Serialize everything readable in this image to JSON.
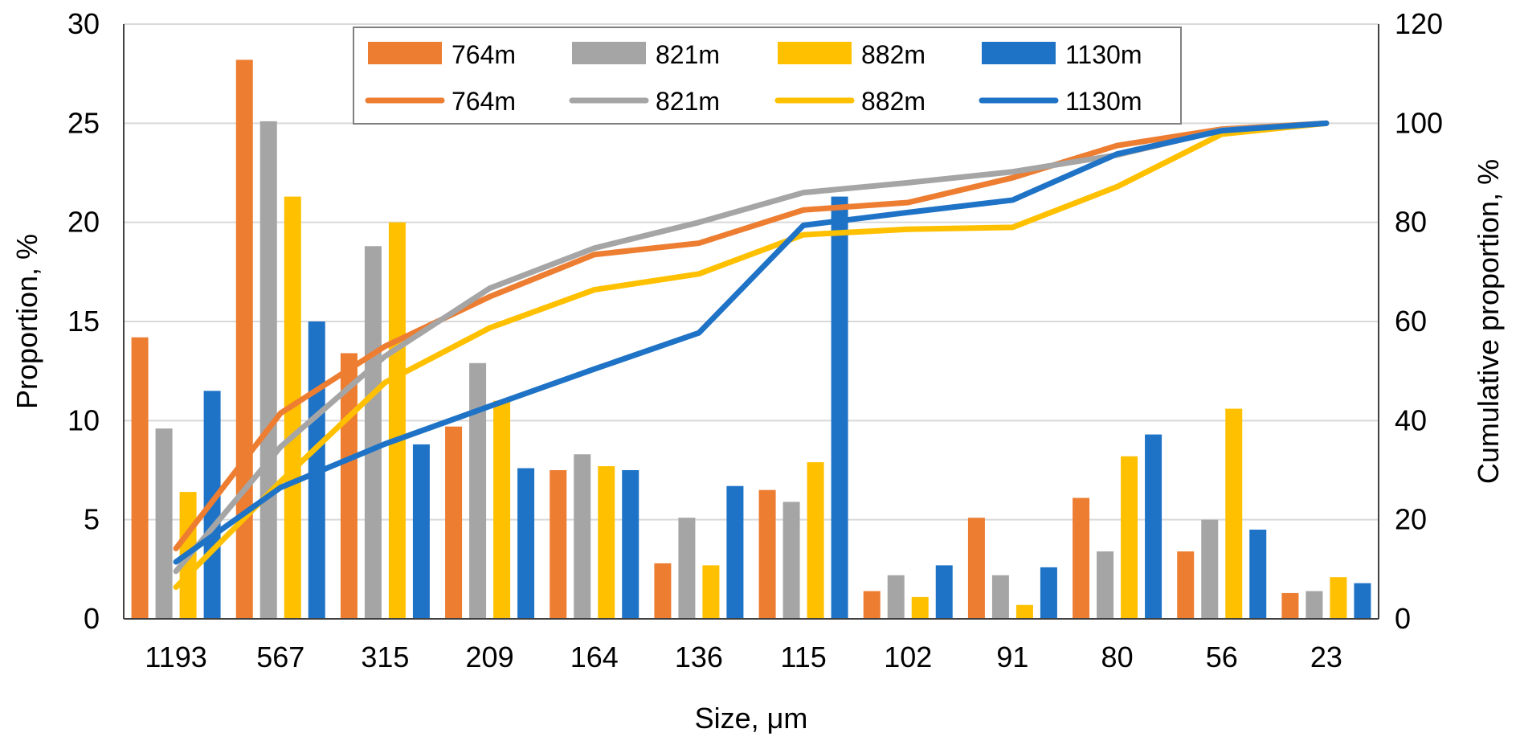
{
  "chart_data": {
    "type": "bar+line",
    "title": "",
    "xlabel": "Size, μm",
    "ylabel": "Proportion, %",
    "y2label": "Cumulative proportion, %",
    "ylim": [
      0,
      30
    ],
    "y2lim": [
      0,
      120
    ],
    "yticks": [
      "0",
      "5",
      "10",
      "15",
      "20",
      "25",
      "30"
    ],
    "y2ticks": [
      "0",
      "20",
      "40",
      "60",
      "80",
      "100",
      "120"
    ],
    "grid": true,
    "legend_position": "top",
    "categories": [
      "1193",
      "567",
      "315",
      "209",
      "164",
      "136",
      "115",
      "102",
      "91",
      "80",
      "56",
      "23"
    ],
    "bar_series": [
      {
        "name": "764m",
        "color": "#ED7D31",
        "values": [
          14.2,
          28.2,
          13.4,
          9.7,
          7.5,
          2.8,
          6.5,
          1.4,
          5.1,
          6.1,
          3.4,
          1.3
        ]
      },
      {
        "name": "821m",
        "color": "#A5A5A5",
        "values": [
          9.6,
          25.1,
          18.8,
          12.9,
          8.3,
          5.1,
          5.9,
          2.2,
          2.2,
          3.4,
          5.0,
          1.4
        ]
      },
      {
        "name": "882m",
        "color": "#FFC000",
        "values": [
          6.4,
          21.3,
          20.0,
          11.0,
          7.7,
          2.7,
          7.9,
          1.1,
          0.7,
          8.2,
          10.6,
          2.1
        ]
      },
      {
        "name": "1130m",
        "color": "#1F73C6",
        "values": [
          11.5,
          15.0,
          8.8,
          7.6,
          7.5,
          6.7,
          21.3,
          2.7,
          2.6,
          9.3,
          4.5,
          1.8
        ]
      }
    ],
    "line_series": [
      {
        "name": "764m",
        "color": "#ED7D31",
        "values": [
          14.2,
          41.5,
          55.0,
          65.0,
          73.5,
          75.8,
          82.5,
          84.0,
          89.0,
          95.5,
          98.8,
          100
        ]
      },
      {
        "name": "821m",
        "color": "#A5A5A5",
        "values": [
          9.6,
          34.7,
          53.0,
          66.7,
          74.8,
          80.0,
          86.0,
          88.0,
          90.2,
          93.6,
          98.6,
          100
        ]
      },
      {
        "name": "882m",
        "color": "#FFC000",
        "values": [
          6.4,
          27.7,
          47.7,
          58.7,
          66.4,
          69.6,
          77.5,
          78.6,
          79.0,
          87.2,
          97.8,
          100
        ]
      },
      {
        "name": "1130m",
        "color": "#1F73C6",
        "values": [
          11.5,
          26.5,
          35.3,
          42.9,
          50.4,
          57.7,
          79.4,
          82.0,
          84.5,
          93.8,
          98.5,
          100
        ]
      }
    ]
  }
}
